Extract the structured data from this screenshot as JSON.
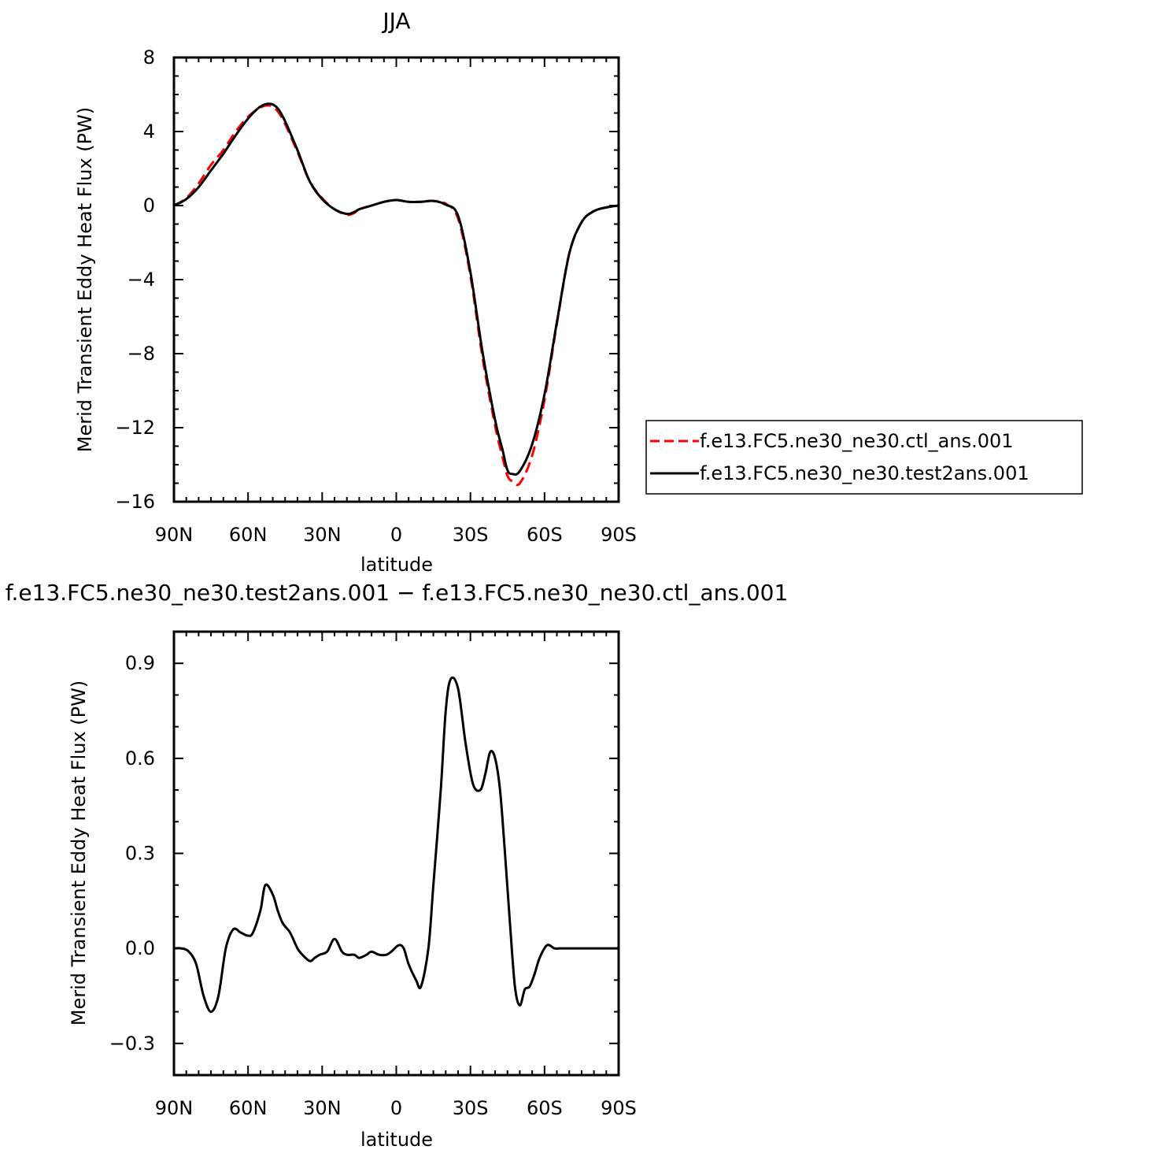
{
  "chart_data": [
    {
      "type": "line",
      "title": "JJA",
      "xlabel": "latitude",
      "ylabel": "Merid Transient Eddy Heat Flux (PW)",
      "xlim": [
        90,
        -90
      ],
      "ylim": [
        -16,
        8
      ],
      "x_ticks": [
        90,
        60,
        30,
        0,
        -30,
        -60,
        -90
      ],
      "x_tick_labels": [
        "90N",
        "60N",
        "30N",
        "0",
        "30S",
        "60S",
        "90S"
      ],
      "y_ticks": [
        8,
        4,
        0,
        -4,
        -8,
        -12,
        -16
      ],
      "y_tick_labels": [
        "8",
        "4",
        "0",
        "−4",
        "−8",
        "−12",
        "−16"
      ],
      "legend_position": "right-outside",
      "series": [
        {
          "name": "f.e13.FC5.ne30_ne30.ctl_ans.001",
          "color": "#ff0000",
          "style": "dashed",
          "x": [
            90,
            85,
            80,
            75,
            70,
            65,
            60,
            55,
            51,
            48,
            45,
            40,
            35,
            30,
            25,
            20,
            17,
            15,
            10,
            5,
            0,
            -5,
            -10,
            -15,
            -20,
            -25,
            -30,
            -35,
            -40,
            -43,
            -45,
            -47,
            -50,
            -55,
            -60,
            -65,
            -70,
            -75,
            -80,
            -85,
            -90
          ],
          "y": [
            0.0,
            0.4,
            1.2,
            2.2,
            3.0,
            4.0,
            4.8,
            5.3,
            5.4,
            5.1,
            4.4,
            2.9,
            1.3,
            0.4,
            -0.2,
            -0.5,
            -0.4,
            -0.2,
            0.0,
            0.2,
            0.3,
            0.2,
            0.2,
            0.25,
            0.1,
            -0.7,
            -3.8,
            -8.3,
            -11.9,
            -13.6,
            -14.6,
            -14.9,
            -15.0,
            -13.5,
            -10.5,
            -6.4,
            -2.6,
            -0.9,
            -0.3,
            -0.1,
            0.0
          ]
        },
        {
          "name": "f.e13.FC5.ne30_ne30.test2ans.001",
          "color": "#000000",
          "style": "solid",
          "x": [
            90,
            85,
            80,
            75,
            70,
            65,
            60,
            55,
            51,
            48,
            45,
            40,
            35,
            30,
            25,
            20,
            17,
            15,
            10,
            5,
            0,
            -5,
            -10,
            -15,
            -20,
            -25,
            -30,
            -35,
            -40,
            -43,
            -45,
            -47,
            -50,
            -55,
            -60,
            -65,
            -70,
            -75,
            -80,
            -85,
            -90
          ],
          "y": [
            0.0,
            0.35,
            1.0,
            1.9,
            2.8,
            3.8,
            4.7,
            5.35,
            5.5,
            5.25,
            4.55,
            3.0,
            1.3,
            0.35,
            -0.2,
            -0.45,
            -0.35,
            -0.2,
            0.0,
            0.2,
            0.3,
            0.2,
            0.2,
            0.25,
            0.05,
            -0.55,
            -3.6,
            -8.0,
            -11.6,
            -13.2,
            -14.3,
            -14.5,
            -14.35,
            -12.9,
            -10.2,
            -6.3,
            -2.6,
            -0.9,
            -0.3,
            -0.1,
            0.0
          ]
        }
      ]
    },
    {
      "type": "line",
      "title": "f.e13.FC5.ne30_ne30.test2ans.001 − f.e13.FC5.ne30_ne30.ctl_ans.001",
      "xlabel": "latitude",
      "ylabel": "Merid Transient Eddy Heat Flux (PW)",
      "xlim": [
        90,
        -90
      ],
      "ylim": [
        -0.4,
        1.0
      ],
      "x_ticks": [
        90,
        60,
        30,
        0,
        -30,
        -60,
        -90
      ],
      "x_tick_labels": [
        "90N",
        "60N",
        "30N",
        "0",
        "30S",
        "60S",
        "90S"
      ],
      "y_ticks": [
        0.9,
        0.6,
        0.3,
        0.0,
        -0.3
      ],
      "y_tick_labels": [
        "0.9",
        "0.6",
        "0.3",
        "0.0",
        "−0.3"
      ],
      "series": [
        {
          "color": "#000000",
          "style": "solid",
          "x": [
            90,
            87,
            84,
            81,
            78,
            75,
            72,
            69,
            66,
            63,
            60,
            58,
            55,
            53,
            50,
            48,
            46,
            43,
            40,
            38,
            35,
            33,
            31,
            28,
            25,
            22,
            20,
            17,
            15,
            12,
            10,
            7,
            4,
            2,
            -1,
            -3,
            -5,
            -8,
            -10,
            -13,
            -15,
            -18,
            -20,
            -22,
            -25,
            -28,
            -31,
            -34,
            -36,
            -38,
            -40,
            -42,
            -44,
            -46,
            -48,
            -50,
            -52,
            -54,
            -56,
            -58,
            -61,
            -64,
            -66,
            -68,
            -69,
            -70,
            -72,
            -74,
            -76,
            -78,
            -81,
            -84,
            -87,
            -90
          ],
          "y": [
            0.0,
            0.0,
            -0.01,
            -0.05,
            -0.15,
            -0.2,
            -0.15,
            0.0,
            0.06,
            0.05,
            0.04,
            0.05,
            0.12,
            0.2,
            0.17,
            0.12,
            0.08,
            0.05,
            0.0,
            -0.02,
            -0.04,
            -0.03,
            -0.02,
            -0.01,
            0.03,
            -0.01,
            -0.02,
            -0.02,
            -0.03,
            -0.02,
            -0.01,
            -0.02,
            -0.02,
            -0.01,
            0.01,
            0.0,
            -0.05,
            -0.1,
            -0.12,
            0.0,
            0.2,
            0.5,
            0.75,
            0.85,
            0.82,
            0.65,
            0.52,
            0.5,
            0.55,
            0.62,
            0.6,
            0.5,
            0.3,
            0.08,
            -0.12,
            -0.18,
            -0.13,
            -0.12,
            -0.08,
            -0.03,
            0.01,
            0.0,
            0.0,
            0.0,
            0.0,
            0.0,
            0.0,
            0.0,
            0.0,
            0.0,
            0.0,
            0.0,
            0.0,
            0.0
          ]
        }
      ]
    }
  ]
}
